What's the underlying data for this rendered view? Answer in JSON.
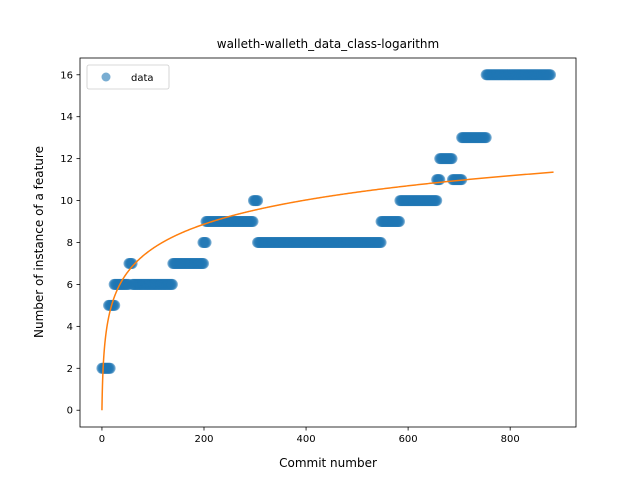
{
  "chart_data": {
    "type": "scatter",
    "title": "walleth-walleth_data_class-logarithm",
    "xlabel": "Commit number",
    "ylabel": "Number of instance of a feature",
    "xlim": [
      -43,
      929
    ],
    "ylim": [
      -0.8,
      16.8
    ],
    "xticks": [
      0,
      200,
      400,
      600,
      800
    ],
    "yticks": [
      0,
      2,
      4,
      6,
      8,
      10,
      12,
      14,
      16
    ],
    "grid": false,
    "legend": {
      "placement": "top-left",
      "entries": [
        "data"
      ]
    },
    "colors": {
      "scatter": "#1f77b4",
      "fit": "#ff7f0e"
    },
    "series": [
      {
        "name": "data",
        "kind": "scatter",
        "segments": [
          {
            "x_start": 0,
            "x_end": 17,
            "y": 2
          },
          {
            "x_start": 13,
            "x_end": 26,
            "y": 5
          },
          {
            "x_start": 24,
            "x_end": 53,
            "y": 6
          },
          {
            "x_start": 53,
            "x_end": 60,
            "y": 7
          },
          {
            "x_start": 60,
            "x_end": 139,
            "y": 6
          },
          {
            "x_start": 139,
            "x_end": 200,
            "y": 7
          },
          {
            "x_start": 198,
            "x_end": 205,
            "y": 8
          },
          {
            "x_start": 204,
            "x_end": 297,
            "y": 9
          },
          {
            "x_start": 297,
            "x_end": 305,
            "y": 10
          },
          {
            "x_start": 305,
            "x_end": 547,
            "y": 8
          },
          {
            "x_start": 547,
            "x_end": 584,
            "y": 9
          },
          {
            "x_start": 584,
            "x_end": 656,
            "y": 10
          },
          {
            "x_start": 656,
            "x_end": 662,
            "y": 11
          },
          {
            "x_start": 662,
            "x_end": 687,
            "y": 12
          },
          {
            "x_start": 687,
            "x_end": 705,
            "y": 11
          },
          {
            "x_start": 705,
            "x_end": 753,
            "y": 13
          },
          {
            "x_start": 753,
            "x_end": 880,
            "y": 16
          }
        ]
      },
      {
        "name": "logarithm fit",
        "kind": "line",
        "function": "a*ln(x+1)+b",
        "a": 1.673,
        "b": 0,
        "x_range": [
          0,
          885
        ]
      }
    ]
  }
}
